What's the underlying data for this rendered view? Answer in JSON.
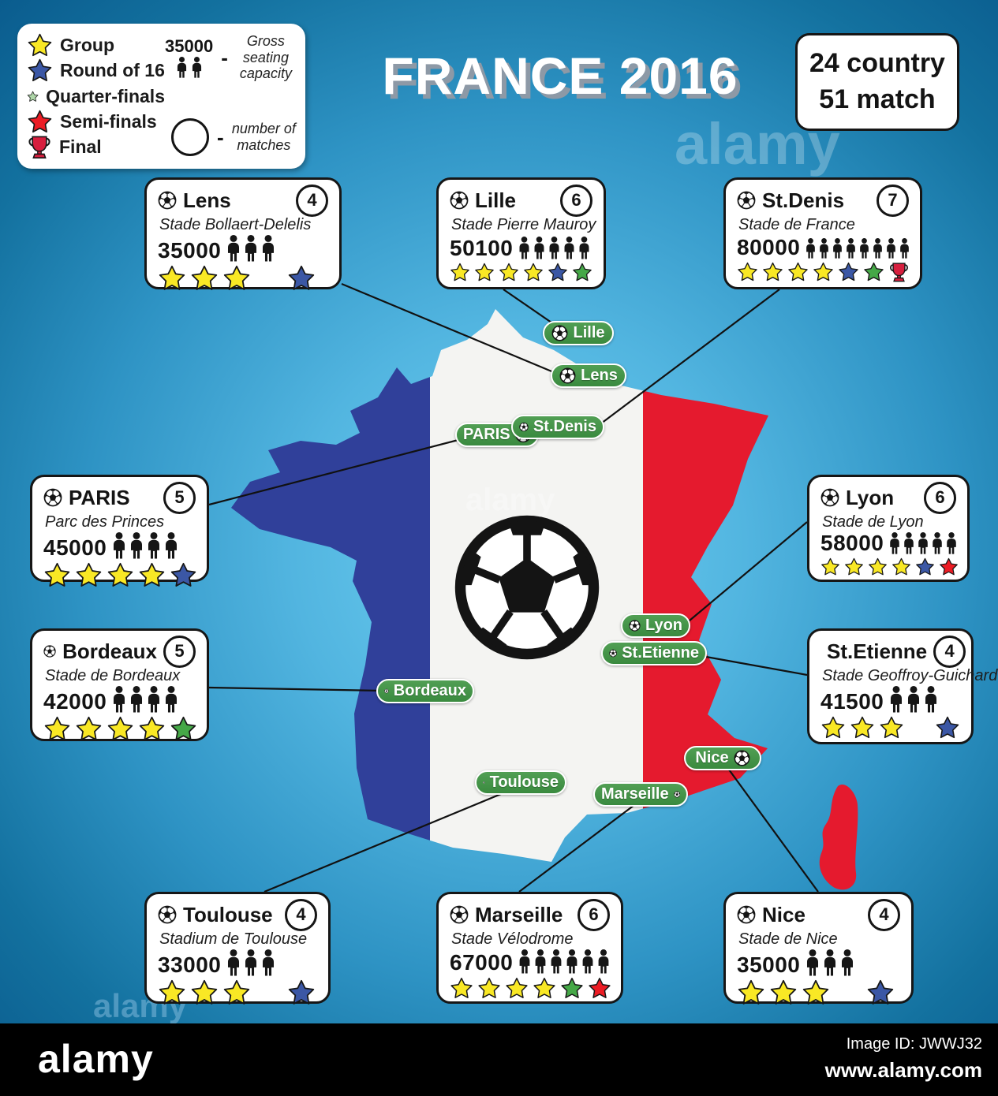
{
  "title": "FRANCE 2016",
  "stats_box": {
    "line1": "24 country",
    "line2": "51 match"
  },
  "legend": {
    "stars": [
      {
        "type": "yellow",
        "label": "Group"
      },
      {
        "type": "blue",
        "label": "Round of 16"
      },
      {
        "type": "green_light",
        "label": "Quarter-finals"
      },
      {
        "type": "red",
        "label": "Semi-finals"
      },
      {
        "type": "trophy",
        "label": "Final"
      }
    ],
    "capacity_example": "35000",
    "capacity_desc": "Gross seating capacity",
    "matches_desc": "number of matches"
  },
  "cards": [
    {
      "id": "lens",
      "city": "Lens",
      "stadium": "Stade Bollaert-Delelis",
      "capacity": "35000",
      "matches": "4",
      "people": 3,
      "stars": [
        "yellow",
        "yellow",
        "yellow",
        "gap",
        "blue"
      ]
    },
    {
      "id": "lille",
      "city": "Lille",
      "stadium": "Stade Pierre Mauroy",
      "capacity": "50100",
      "matches": "6",
      "people": 5,
      "stars": [
        "yellow",
        "yellow",
        "yellow",
        "yellow",
        "blue",
        "green"
      ]
    },
    {
      "id": "stdenis",
      "city": "St.Denis",
      "stadium": "Stade de France",
      "capacity": "80000",
      "matches": "7",
      "people": 8,
      "stars": [
        "yellow",
        "yellow",
        "yellow",
        "yellow",
        "blue",
        "green",
        "trophy"
      ]
    },
    {
      "id": "paris",
      "city": "PARIS",
      "stadium": "Parc des Princes",
      "capacity": "45000",
      "matches": "5",
      "people": 4,
      "stars": [
        "yellow",
        "yellow",
        "yellow",
        "yellow",
        "blue"
      ]
    },
    {
      "id": "lyon",
      "city": "Lyon",
      "stadium": "Stade de Lyon",
      "capacity": "58000",
      "matches": "6",
      "people": 5,
      "stars": [
        "yellow",
        "yellow",
        "yellow",
        "yellow",
        "blue",
        "red"
      ]
    },
    {
      "id": "bordeaux",
      "city": "Bordeaux",
      "stadium": "Stade de Bordeaux",
      "capacity": "42000",
      "matches": "5",
      "people": 4,
      "stars": [
        "yellow",
        "yellow",
        "yellow",
        "yellow",
        "green"
      ]
    },
    {
      "id": "stetienne",
      "city": "St.Etienne",
      "stadium": "Stade Geoffroy-Guichard",
      "capacity": "41500",
      "matches": "4",
      "people": 3,
      "stars": [
        "yellow",
        "yellow",
        "yellow",
        "gap",
        "blue"
      ]
    },
    {
      "id": "toulouse",
      "city": "Toulouse",
      "stadium": "Stadium de Toulouse",
      "capacity": "33000",
      "matches": "4",
      "people": 3,
      "stars": [
        "yellow",
        "yellow",
        "yellow",
        "gap",
        "blue"
      ]
    },
    {
      "id": "marseille",
      "city": "Marseille",
      "stadium": "Stade Vélodrome",
      "capacity": "67000",
      "matches": "6",
      "people": 6,
      "stars": [
        "yellow",
        "yellow",
        "yellow",
        "yellow",
        "green",
        "red"
      ]
    },
    {
      "id": "nice",
      "city": "Nice",
      "stadium": "Stade de Nice",
      "capacity": "35000",
      "matches": "4",
      "people": 3,
      "stars": [
        "yellow",
        "yellow",
        "yellow",
        "gap",
        "blue"
      ]
    }
  ],
  "pills": [
    {
      "id": "lille",
      "label": "Lille",
      "ball": "left"
    },
    {
      "id": "lens",
      "label": "Lens",
      "ball": "left"
    },
    {
      "id": "paris",
      "label": "PARIS",
      "ball": "right"
    },
    {
      "id": "stdenis",
      "label": "St.Denis",
      "ball": "left"
    },
    {
      "id": "lyon",
      "label": "Lyon",
      "ball": "left"
    },
    {
      "id": "stetienne",
      "label": "St.Etienne",
      "ball": "left"
    },
    {
      "id": "bordeaux",
      "label": "Bordeaux",
      "ball": "left"
    },
    {
      "id": "toulouse",
      "label": "Toulouse",
      "ball": "left"
    },
    {
      "id": "nice",
      "label": "Nice",
      "ball": "right"
    },
    {
      "id": "marseille",
      "label": "Marseille",
      "ball": "right"
    }
  ],
  "colors": {
    "star_yellow": "#f9e825",
    "star_blue": "#3b57a5",
    "star_green": "#45a847",
    "star_green_light": "#aed6a8",
    "star_red": "#ec1c24",
    "trophy_red": "#d71f3e",
    "map_blue": "#30409a",
    "map_white": "#f4f4f2",
    "map_red": "#e51a2e",
    "pill_green": "#3f9043"
  },
  "watermark": {
    "logo": "alamy",
    "image_id": "Image ID: JWWJ32",
    "url": "www.alamy.com"
  }
}
